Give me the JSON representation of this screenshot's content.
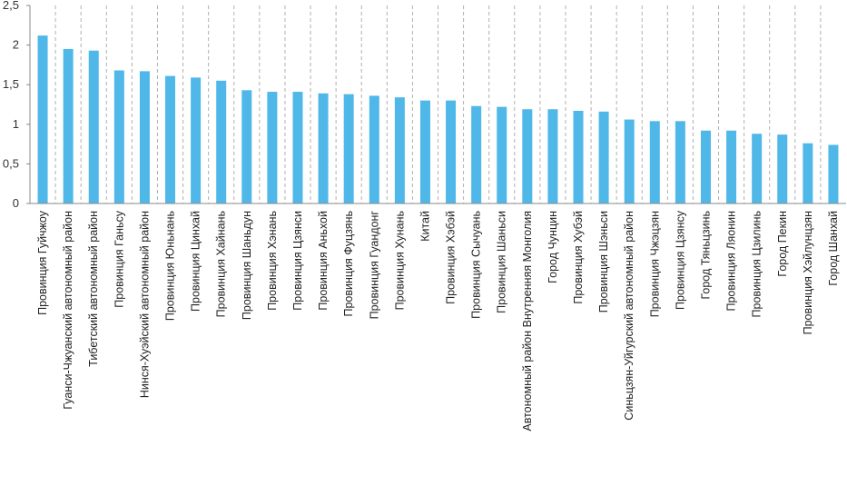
{
  "chart_data": {
    "type": "bar",
    "categories": [
      "Провинция Гуйчжоу",
      "Гуанси-Чжуанский автономный район",
      "Тибетский автономный район",
      "Провинция Ганьсу",
      "Нинся-Хуэйский автономный район",
      "Провинция Юньнань",
      "Провинция Цинхай",
      "Провинция Хайнань",
      "Провинция Шаньдун",
      "Провинция Хэнань",
      "Провинция Цзянси",
      "Провинция Аньхой",
      "Провинция Фуцзянь",
      "Провинция Гуандонг",
      "Провинция Хунань",
      "Китай",
      "Провинция Хэбэй",
      "Провинция Сычуань",
      "Провинция Шаньси",
      "Автономный район Внутренняя Монголия",
      "Город Чунцин",
      "Провинция Хубэй",
      "Провинция Шэньси",
      "Синьцзян-Уйгурский автономный район",
      "Провинция Чжэцзян",
      "Провинция Цзянсу",
      "Город Тяньцзинь",
      "Провинция Ляонин",
      "Провинция Цзилинь",
      "Город Пекин",
      "Провинция Хэйлунцзян",
      "Город Шанхай"
    ],
    "values": [
      2.12,
      1.95,
      1.93,
      1.68,
      1.67,
      1.61,
      1.59,
      1.55,
      1.43,
      1.41,
      1.41,
      1.39,
      1.38,
      1.36,
      1.34,
      1.3,
      1.3,
      1.23,
      1.22,
      1.19,
      1.19,
      1.17,
      1.16,
      1.06,
      1.04,
      1.04,
      0.92,
      0.92,
      0.88,
      0.87,
      0.76,
      0.74
    ],
    "yticks": [
      "0",
      "0,5",
      "1",
      "1,5",
      "2",
      "2,5"
    ],
    "ylim": [
      0,
      2.5
    ],
    "bar_color": "#4fb8e8",
    "gridline_color": "#b0b0b0",
    "grid": "vertical dashed separators between categories"
  }
}
